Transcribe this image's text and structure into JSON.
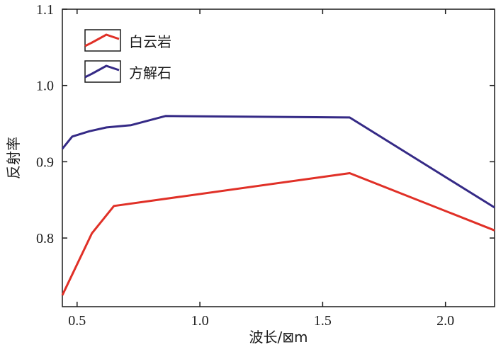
{
  "chart_data": {
    "type": "line",
    "title": "",
    "xlabel": "波长/⊠m",
    "ylabel": "反射率",
    "xlim": [
      0.44,
      2.2
    ],
    "ylim": [
      0.71,
      1.1
    ],
    "xticks": [
      {
        "value": 0.5,
        "label": "0.5"
      },
      {
        "value": 1.0,
        "label": "1.0"
      },
      {
        "value": 1.5,
        "label": "1.5"
      },
      {
        "value": 2.0,
        "label": "2.0"
      }
    ],
    "yticks": [
      {
        "value": 0.8,
        "label": "0.8"
      },
      {
        "value": 0.9,
        "label": "0.9"
      },
      {
        "value": 1.0,
        "label": "1.0"
      },
      {
        "value": 1.1,
        "label": "1.1"
      }
    ],
    "grid": false,
    "legend_position": "top-left",
    "series": [
      {
        "name": "白云岩",
        "color": "#e03027",
        "x": [
          0.44,
          0.56,
          0.65,
          1.61,
          2.2
        ],
        "y": [
          0.725,
          0.806,
          0.842,
          0.885,
          0.81
        ]
      },
      {
        "name": "方解石",
        "color": "#352a86",
        "x": [
          0.44,
          0.48,
          0.55,
          0.62,
          0.72,
          0.86,
          1.61,
          2.2
        ],
        "y": [
          0.917,
          0.933,
          0.94,
          0.945,
          0.948,
          0.96,
          0.958,
          0.84
        ]
      }
    ]
  }
}
